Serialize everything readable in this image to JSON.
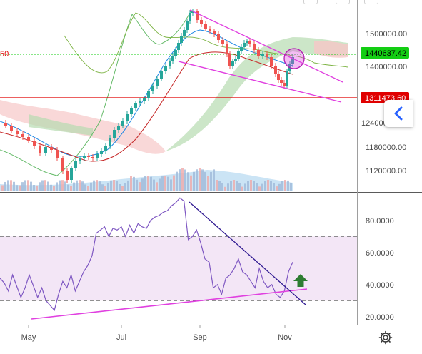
{
  "chart_data": [
    {
      "type": "candlestick",
      "title": "",
      "x_tick_labels": [
        "May",
        "Jul",
        "Sep",
        "Nov"
      ],
      "y_tick_labels": [
        "1500000.00",
        "1400000.00",
        "1240000.00",
        "1180000.00",
        "1120000.00"
      ],
      "y_axis_label_partial": "1240000",
      "current_price_tag": "1440637.42",
      "reference_line_tag": "1311473.60",
      "left_edge_label": "50",
      "indicators": [
        "ichimoku cloud",
        "volume",
        "descending channel",
        "circle marker",
        "moving average"
      ],
      "colors": {
        "up_candle": "#26a69a",
        "down_candle": "#ef5350",
        "current_price": "#13ce13",
        "reference_line": "#e00000",
        "trend_lines": "#e040e0",
        "cloud_bull": "#b7dcb0",
        "cloud_bear": "#f6c7c7"
      }
    },
    {
      "type": "line",
      "title": "",
      "x_tick_labels": [
        "May",
        "Jul",
        "Sep",
        "Nov"
      ],
      "y_tick_labels": [
        "80.0000",
        "60.0000",
        "40.0000",
        "20.0000"
      ],
      "bands": [
        30,
        70
      ],
      "ylim": [
        15,
        95
      ],
      "series": [
        {
          "values": [
            44,
            41,
            36,
            46,
            39,
            32,
            38,
            46,
            39,
            32,
            38,
            30,
            27,
            24,
            34,
            42,
            38,
            46,
            36,
            42,
            48,
            52,
            58,
            72,
            74,
            76,
            70,
            75,
            74,
            76,
            70,
            77,
            72,
            78,
            76,
            75,
            80,
            82,
            83,
            85,
            86,
            89,
            91,
            94,
            92,
            68,
            70,
            74,
            66,
            56,
            54,
            38,
            40,
            34,
            44,
            46,
            50,
            56,
            48,
            46,
            42,
            38,
            50,
            42,
            38,
            40,
            34,
            32,
            36,
            48,
            54
          ],
          "x_start": "mid-April",
          "x_end": "early November"
        }
      ],
      "annotations": [
        "descending resistance line",
        "ascending support line",
        "up arrow"
      ]
    }
  ]
}
